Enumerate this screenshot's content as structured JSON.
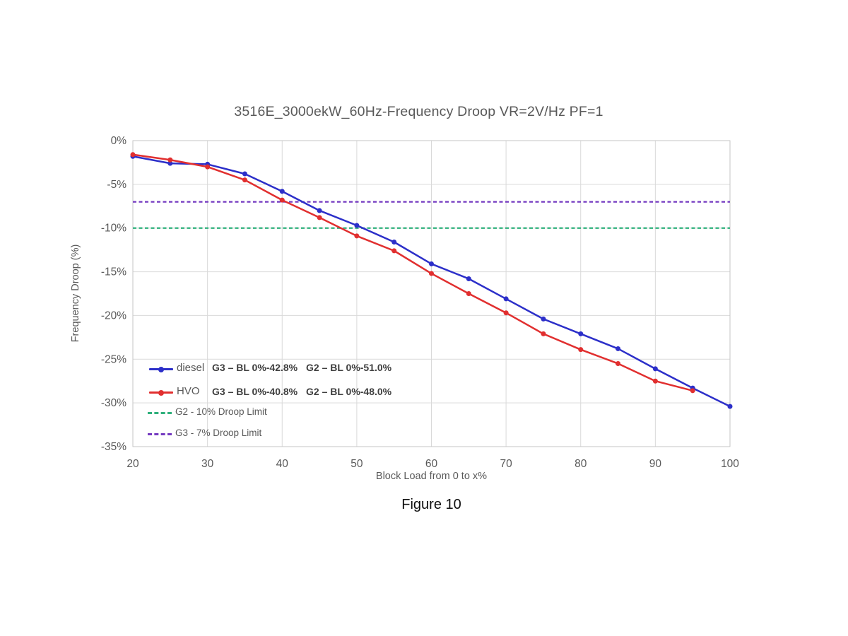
{
  "figure": {
    "caption": "Figure 10"
  },
  "chart_data": {
    "type": "line",
    "title": "3516E_3000ekW_60Hz-Frequency Droop VR=2V/Hz PF=1",
    "xlabel": "Block Load from 0 to x%",
    "ylabel": "Frequency Droop (%)",
    "xlim": [
      20,
      100
    ],
    "ylim": [
      -35,
      0
    ],
    "xticks": [
      20,
      30,
      40,
      50,
      60,
      70,
      80,
      90,
      100
    ],
    "yticks": [
      0,
      -5,
      -10,
      -15,
      -20,
      -25,
      -30,
      -35
    ],
    "ytick_labels": [
      "0%",
      "-5%",
      "-10%",
      "-15%",
      "-20%",
      "-25%",
      "-30%",
      "-35%"
    ],
    "grid": true,
    "legend_position": "inside-bottom-left",
    "colors": {
      "grid": "#d9d9d9",
      "border": "#c6c6c6",
      "text": "#595959"
    },
    "series": [
      {
        "name": "diesel",
        "color": "#2c2fc9",
        "x": [
          20,
          25,
          30,
          35,
          40,
          45,
          50,
          55,
          60,
          65,
          70,
          75,
          80,
          85,
          90,
          95,
          100
        ],
        "values": [
          -1.8,
          -2.6,
          -2.7,
          -3.8,
          -5.8,
          -8.0,
          -9.7,
          -11.6,
          -14.1,
          -15.8,
          -18.1,
          -20.4,
          -22.1,
          -23.8,
          -26.1,
          -28.3,
          -30.4
        ]
      },
      {
        "name": "HVO",
        "color": "#e12f2f",
        "x": [
          20,
          25,
          30,
          35,
          40,
          45,
          50,
          55,
          60,
          65,
          70,
          75,
          80,
          85,
          90,
          95
        ],
        "values": [
          -1.6,
          -2.2,
          -3.0,
          -4.5,
          -6.8,
          -8.8,
          -10.9,
          -12.6,
          -15.2,
          -17.5,
          -19.7,
          -22.1,
          -23.9,
          -25.5,
          -27.5,
          -28.6
        ]
      }
    ],
    "limit_lines": [
      {
        "name": "G2 - 10% Droop Limit",
        "value": -10,
        "color": "#2fb07c",
        "style": "dashed"
      },
      {
        "name": "G3 - 7% Droop Limit",
        "value": -7,
        "color": "#7439c0",
        "style": "dashed"
      }
    ],
    "annotations": {
      "diesel_g3": "G3 – BL 0%-42.8%",
      "diesel_g2": "G2 – BL 0%-51.0%",
      "hvo_g3": "G3 – BL 0%-40.8%",
      "hvo_g2": "G2 – BL 0%-48.0%"
    }
  }
}
